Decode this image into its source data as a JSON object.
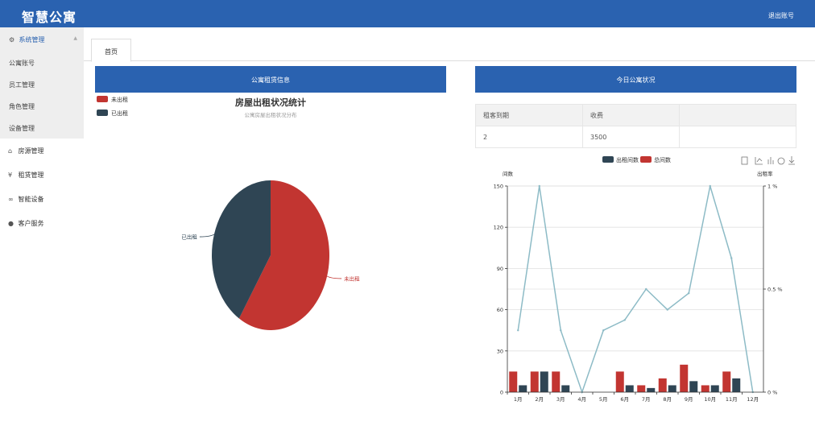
{
  "header": {
    "title": "智慧公寓",
    "logout_label": "退出账号"
  },
  "sidebar": {
    "system": {
      "label": "系统管理",
      "items": [
        "公寓账号",
        "员工管理",
        "角色管理",
        "设备管理"
      ]
    },
    "menu": [
      {
        "label": "房源管理",
        "icon": "home-icon"
      },
      {
        "label": "租赁管理",
        "icon": "yen-icon"
      },
      {
        "label": "智能设备",
        "icon": "link-icon"
      },
      {
        "label": "客户服务",
        "icon": "user-icon"
      }
    ]
  },
  "tabs": [
    {
      "label": "首页"
    }
  ],
  "left_panel": {
    "title": "公寓租赁信息"
  },
  "right_panel": {
    "title": "今日公寓状况"
  },
  "today_table": {
    "headers": [
      "租客到期",
      "收费",
      ""
    ],
    "rows": [
      [
        "2",
        "3500",
        ""
      ]
    ]
  },
  "colors": {
    "brand": "#2a62b0",
    "red": "#c23531",
    "navy": "#2f4554",
    "line": "#8dbbc6"
  },
  "chart_data": [
    {
      "type": "pie",
      "title": "房屋出租状况统计",
      "subtitle": "公寓房屋出租状况分布",
      "legend": [
        "未出租",
        "已出租"
      ],
      "legend_position": "top-left",
      "slices": [
        {
          "name": "未出租",
          "value": 59,
          "color": "#c23531"
        },
        {
          "name": "已出租",
          "value": 41,
          "color": "#2f4554"
        }
      ]
    },
    {
      "type": "bar",
      "categories": [
        "1月",
        "2月",
        "3月",
        "4月",
        "5月",
        "6月",
        "7月",
        "8月",
        "9月",
        "10月",
        "11月",
        "12月"
      ],
      "legend": [
        "出租间数",
        "总间数"
      ],
      "legend_position": "top",
      "ylabel": "间数",
      "y2label": "出租率",
      "ylim": [
        0,
        150
      ],
      "y_ticks": [
        0,
        30,
        60,
        90,
        120,
        150
      ],
      "y2lim": [
        0,
        1
      ],
      "y2_ticks": [
        "0 %",
        "0.5 %",
        "1 %"
      ],
      "grid": true,
      "series": [
        {
          "name": "总间数",
          "type": "bar",
          "color": "#c23531",
          "values": [
            15,
            15,
            15,
            0,
            0,
            15,
            5,
            10,
            20,
            5,
            15,
            0
          ]
        },
        {
          "name": "出租间数",
          "type": "bar",
          "color": "#2f4554",
          "values": [
            5,
            15,
            5,
            0,
            0,
            5,
            3,
            5,
            8,
            5,
            10,
            0
          ]
        },
        {
          "name": "出租率",
          "type": "line",
          "axis": "right",
          "color": "#8dbbc6",
          "values": [
            0.3,
            1,
            0.3,
            0,
            0.3,
            0.35,
            0.5,
            0.4,
            0.48,
            1,
            0.65,
            0
          ]
        }
      ]
    }
  ]
}
